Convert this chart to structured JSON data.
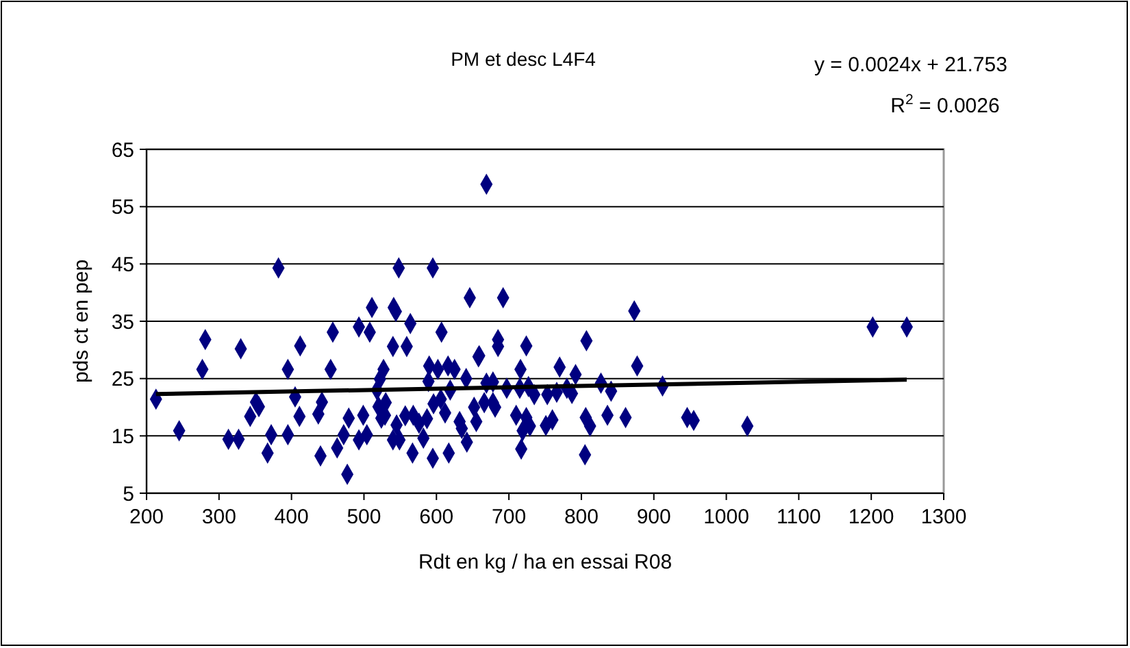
{
  "chart_data": {
    "type": "scatter",
    "title": "PM et desc L4F4",
    "xlabel": "Rdt en kg / ha en essai R08",
    "ylabel": "pds ct en pep",
    "annotations": [
      "y = 0.0024x + 21.753",
      "R$^{2}$ = 0.0026"
    ],
    "xlim": [
      200,
      1300
    ],
    "xticks": [
      200,
      300,
      400,
      500,
      600,
      700,
      800,
      900,
      1000,
      1100,
      1200,
      1300
    ],
    "ylim": [
      5,
      65
    ],
    "yticks": [
      5,
      15,
      25,
      35,
      45,
      55,
      65
    ],
    "grid": "y",
    "series": [
      {
        "color": "#000080",
        "marker": "diamond",
        "x": [
          213,
          245,
          281,
          277,
          313,
          327,
          330,
          343,
          351,
          355,
          367,
          372,
          382,
          395,
          395,
          405,
          411,
          412,
          437,
          442,
          440,
          454,
          457,
          463,
          472,
          477,
          479,
          493,
          493,
          499,
          504,
          508,
          511,
          518,
          522,
          527,
          520,
          524,
          530,
          529,
          540,
          545,
          549,
          541,
          544,
          540,
          548,
          559,
          564,
          557,
          568,
          567,
          576,
          582,
          587,
          595,
          595,
          590,
          589,
          596,
          607,
          602,
          606,
          617,
          616,
          619,
          612,
          625,
          632,
          635,
          642,
          646,
          641,
          652,
          655,
          658,
          669,
          692,
          873,
          807,
          685,
          685,
          724,
          659,
          716,
          770,
          792,
          877,
          669,
          678,
          697,
          715,
          727,
          735,
          753,
          766,
          780,
          787,
          827,
          841,
          912,
          666,
          678,
          681,
          710,
          724,
          729,
          719,
          751,
          760,
          806,
          812,
          836,
          861,
          946,
          955,
          717,
          805,
          1202,
          1249,
          1029
        ],
        "values": [
          21.4,
          15.9,
          31.8,
          26.6,
          14.4,
          14.4,
          30.2,
          18.4,
          20.9,
          20.1,
          12.0,
          15.2,
          44.3,
          26.6,
          15.2,
          21.8,
          18.4,
          30.7,
          18.8,
          20.9,
          11.5,
          26.6,
          33.1,
          12.9,
          15.2,
          8.3,
          18.1,
          34.0,
          14.3,
          18.6,
          15.2,
          33.1,
          37.4,
          23.0,
          24.9,
          26.6,
          20.1,
          18.1,
          20.8,
          18.6,
          14.3,
          16.9,
          14.3,
          37.4,
          36.7,
          30.6,
          44.3,
          30.6,
          34.6,
          18.5,
          18.6,
          12.0,
          17.2,
          14.6,
          18.0,
          44.3,
          11.1,
          27.2,
          24.5,
          20.6,
          33.1,
          26.6,
          21.4,
          12.0,
          27.2,
          23.0,
          19.0,
          26.6,
          17.5,
          16.3,
          13.9,
          39.1,
          25.0,
          20.0,
          17.5,
          28.8,
          58.9,
          39.1,
          36.8,
          31.6,
          31.8,
          30.6,
          30.7,
          29.0,
          26.6,
          27.0,
          25.7,
          27.2,
          24.2,
          24.4,
          23.3,
          23.3,
          23.6,
          22.2,
          22.2,
          22.6,
          23.3,
          22.4,
          24.2,
          22.8,
          23.7,
          20.8,
          20.8,
          20.0,
          18.6,
          18.2,
          16.7,
          15.9,
          16.8,
          17.8,
          18.2,
          16.7,
          18.6,
          18.2,
          18.2,
          17.7,
          12.7,
          11.7,
          34.0,
          34.0,
          16.7
        ]
      },
      {
        "type": "line",
        "color": "#000000",
        "marker": "none",
        "line_style": "solid",
        "x": [
          213,
          1249
        ],
        "values": [
          22.3,
          24.8
        ]
      }
    ]
  }
}
